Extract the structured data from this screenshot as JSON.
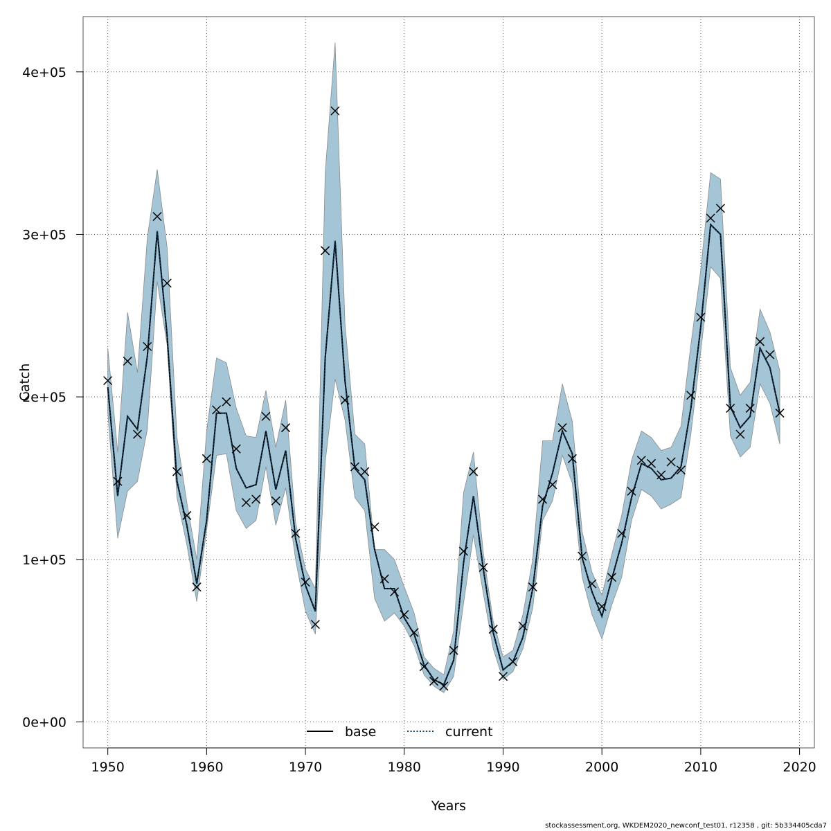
{
  "chart_data": {
    "type": "line",
    "title": "",
    "xlabel": "Years",
    "ylabel": "Catch",
    "xlim": [
      1947.5,
      2021.5
    ],
    "ylim": [
      -16000,
      434000
    ],
    "xticks": [
      1950,
      1960,
      1970,
      1980,
      1990,
      2000,
      2010,
      2020
    ],
    "xtick_labels": [
      "1950",
      "1960",
      "1970",
      "1980",
      "1990",
      "2000",
      "2010",
      "2020"
    ],
    "yticks": [
      0,
      100000,
      200000,
      300000,
      400000
    ],
    "ytick_labels": [
      "0e+00",
      "1e+05",
      "2e+05",
      "3e+05",
      "4e+05"
    ],
    "grid": true,
    "legend_position": "bottom-center",
    "colors": {
      "band": "#a3c5d6",
      "band_edge": "#8a8a8a",
      "current": "#0a3d62",
      "base": "#000000"
    },
    "x": [
      1950,
      1951,
      1952,
      1953,
      1954,
      1955,
      1956,
      1957,
      1958,
      1959,
      1960,
      1961,
      1962,
      1963,
      1964,
      1965,
      1966,
      1967,
      1968,
      1969,
      1970,
      1971,
      1972,
      1973,
      1974,
      1975,
      1976,
      1977,
      1978,
      1979,
      1980,
      1981,
      1982,
      1983,
      1984,
      1985,
      1986,
      1987,
      1988,
      1989,
      1990,
      1991,
      1992,
      1993,
      1994,
      1995,
      1996,
      1997,
      1998,
      1999,
      2000,
      2001,
      2002,
      2003,
      2004,
      2005,
      2006,
      2007,
      2008,
      2009,
      2010,
      2011,
      2012,
      2013,
      2014,
      2015,
      2016,
      2017,
      2018
    ],
    "series": [
      {
        "name": "base",
        "style": "solid",
        "values": [
          206000,
          139000,
          188000,
          180000,
          225000,
          302000,
          238000,
          148000,
          121000,
          85000,
          124000,
          190000,
          190000,
          156000,
          144000,
          146000,
          179000,
          143000,
          167000,
          113000,
          84000,
          68000,
          224000,
          296000,
          210000,
          156000,
          149000,
          106000,
          82000,
          82000,
          64000,
          54000,
          35000,
          26000,
          23000,
          38000,
          98000,
          139000,
          94000,
          55000,
          32000,
          37000,
          52000,
          82000,
          133000,
          153000,
          179000,
          165000,
          101000,
          80000,
          65000,
          88000,
          110000,
          138000,
          159000,
          156000,
          149000,
          150000,
          157000,
          193000,
          243000,
          306000,
          300000,
          194000,
          181000,
          188000,
          230000,
          218000,
          190000
        ]
      },
      {
        "name": "current",
        "style": "dotted",
        "values": [
          206000,
          139000,
          188000,
          180000,
          225000,
          302000,
          238000,
          148000,
          121000,
          85000,
          124000,
          190000,
          190000,
          156000,
          144000,
          146000,
          179000,
          143000,
          167000,
          113000,
          84000,
          68000,
          224000,
          296000,
          210000,
          156000,
          149000,
          106000,
          82000,
          82000,
          64000,
          54000,
          35000,
          26000,
          23000,
          38000,
          98000,
          139000,
          94000,
          55000,
          32000,
          37000,
          52000,
          82000,
          133000,
          153000,
          179000,
          165000,
          101000,
          80000,
          65000,
          88000,
          110000,
          138000,
          159000,
          156000,
          149000,
          150000,
          157000,
          193000,
          243000,
          306000,
          300000,
          194000,
          181000,
          188000,
          230000,
          218000,
          190000
        ]
      }
    ],
    "band_lower": [
      190000,
      113000,
      142000,
      148000,
      180000,
      271000,
      232000,
      138000,
      109000,
      74000,
      118000,
      164000,
      165000,
      130000,
      119000,
      124000,
      157000,
      121000,
      144000,
      100000,
      68000,
      54000,
      160000,
      211000,
      186000,
      138000,
      130000,
      76000,
      62000,
      67000,
      59000,
      47000,
      29000,
      22000,
      18000,
      28000,
      73000,
      115000,
      79000,
      45000,
      26000,
      31000,
      45000,
      70000,
      124000,
      136000,
      164000,
      147000,
      89000,
      66000,
      51000,
      72000,
      89000,
      124000,
      143000,
      139000,
      131000,
      134000,
      138000,
      177000,
      228000,
      280000,
      273000,
      176000,
      163000,
      169000,
      208000,
      196000,
      171000
    ],
    "band_upper": [
      230000,
      166000,
      252000,
      215000,
      298000,
      340000,
      292000,
      175000,
      135000,
      100000,
      179000,
      224000,
      221000,
      193000,
      176000,
      175000,
      204000,
      169000,
      198000,
      123000,
      94000,
      82000,
      338000,
      418000,
      245000,
      177000,
      171000,
      106000,
      106000,
      100000,
      83000,
      67000,
      40000,
      33000,
      29000,
      56000,
      141000,
      166000,
      104000,
      62000,
      40000,
      44000,
      66000,
      100000,
      173000,
      173000,
      208000,
      185000,
      117000,
      92000,
      78000,
      103000,
      127000,
      161000,
      179000,
      175000,
      167000,
      169000,
      182000,
      232000,
      278000,
      338000,
      334000,
      218000,
      201000,
      209000,
      254000,
      240000,
      216000
    ],
    "observations": [
      210000,
      148000,
      222000,
      177000,
      231000,
      311000,
      270000,
      154000,
      127000,
      83000,
      162000,
      192000,
      197000,
      168000,
      135000,
      137000,
      188000,
      136000,
      181000,
      116000,
      86000,
      60000,
      290000,
      376000,
      198000,
      157000,
      154000,
      120000,
      88000,
      80000,
      66000,
      55000,
      34000,
      25000,
      22000,
      44000,
      105000,
      154000,
      95000,
      57000,
      28000,
      37000,
      59000,
      83000,
      137000,
      146000,
      181000,
      162000,
      102000,
      85000,
      71000,
      89000,
      116000,
      142000,
      161000,
      159000,
      152000,
      160000,
      155000,
      201000,
      249000,
      310000,
      316000,
      193000,
      177000,
      193000,
      234000,
      226000,
      190000
    ],
    "legend": [
      "base",
      "current"
    ]
  },
  "footer_text": "stockassessment.org, WKDEM2020_newconf_test01, r12358 , git: 5b334405cda7"
}
